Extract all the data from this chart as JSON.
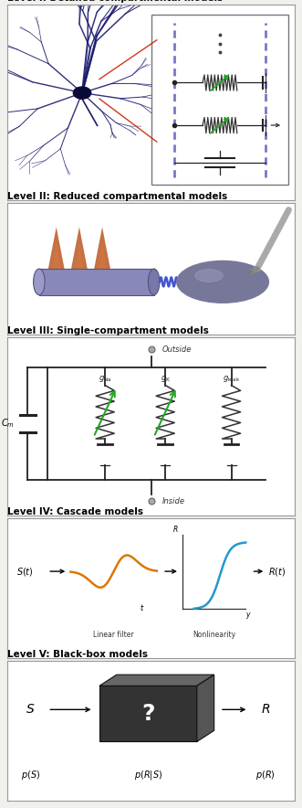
{
  "panel_titles": [
    "Level I: Detailed compartmental models",
    "Level II: Reduced compartmental models",
    "Level III: Single-compartment models",
    "Level IV: Cascade models",
    "Level V: Black-box models"
  ],
  "bg_color": "#f0f0ec",
  "panel_bg": "#ffffff",
  "panel_heights": [
    2.3,
    1.55,
    2.1,
    1.65,
    1.65
  ],
  "neuron_color": "#1a1a6e",
  "soma_color": "#0a0a3a",
  "dendrite_orange": "#b05820",
  "dendrite_rect_color": "#8888bb",
  "soma2_color": "#8888aa",
  "spring_color": "#4455cc",
  "circuit_color": "#222222",
  "arrow_green": "#22aa22",
  "filter_orange": "#dd7700",
  "nonlin_blue": "#2299cc",
  "box_dark": "#333333",
  "box_mid": "#555555",
  "box_light": "#666666"
}
